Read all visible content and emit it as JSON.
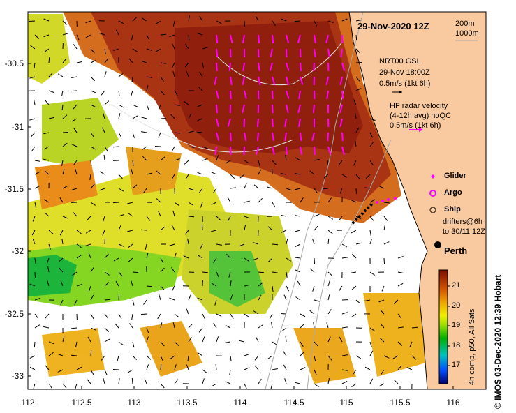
{
  "title": "29-Nov-2020 12Z",
  "depth_contours": [
    "200m",
    "1000m"
  ],
  "legend": {
    "gsl_lines": [
      "NRT00 GSL",
      "29-Nov 18:00Z",
      "0.5m/s (1kt 6h)"
    ],
    "hf_lines": [
      "HF radar velocity",
      "(4-12h avg) noQC",
      "0.5m/s (1kt 6h)"
    ],
    "glider": "Glider",
    "argo": "Argo",
    "ship": "Ship",
    "drifters_lines": [
      "drifters@6h",
      "to 30/11 12Z"
    ]
  },
  "place": "Perth",
  "credit": "©  IMOS 03-Dec-2020 12:39 Hobart",
  "colorbar": {
    "title": "4h comp, p50, All Sats",
    "ticks": [
      "21",
      "20",
      "19",
      "18",
      "17"
    ]
  },
  "axes": {
    "lat_ticks": [
      "-30.5",
      "-31",
      "-31.5",
      "-32",
      "-32.5",
      "-33"
    ],
    "lon_ticks": [
      "112",
      "112.5",
      "113",
      "113.5",
      "114",
      "114.5",
      "115",
      "115.5",
      "116"
    ]
  },
  "colors": {
    "land": "#f9c9a0",
    "warm": "#9b1a05",
    "hf_arrow": "#ff00ff",
    "contour": "#aaaaaa"
  }
}
